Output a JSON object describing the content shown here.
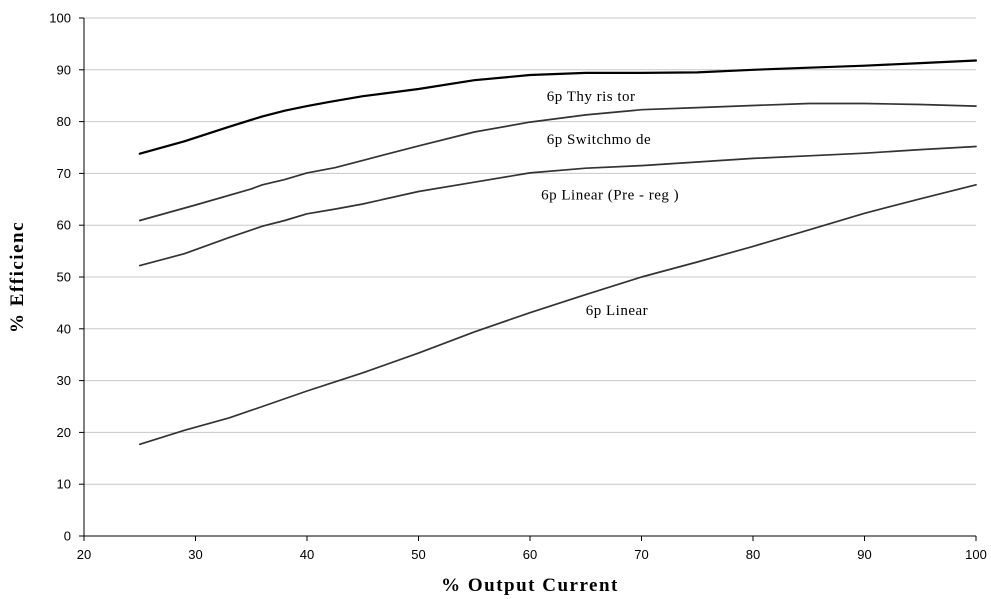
{
  "chart_data": {
    "type": "line",
    "title": "",
    "xlabel": "% Output Current",
    "ylabel": "% Efficienc",
    "xlim": [
      20,
      100
    ],
    "ylim": [
      0,
      100
    ],
    "xticks": [
      20,
      30,
      40,
      50,
      60,
      70,
      80,
      90,
      100
    ],
    "yticks": [
      0,
      10,
      20,
      30,
      40,
      50,
      60,
      70,
      80,
      90,
      100
    ],
    "grid": "horizontal",
    "series": [
      {
        "name": "6p Thyristor",
        "color": "#000000",
        "x": [
          25,
          29,
          33,
          36,
          38,
          40,
          42,
          45,
          50,
          55,
          60,
          65,
          70,
          75,
          80,
          85,
          90,
          95,
          100
        ],
        "y": [
          73.8,
          76.2,
          79.0,
          81.0,
          82.1,
          83.0,
          83.8,
          84.9,
          86.3,
          88.0,
          89.0,
          89.4,
          89.4,
          89.5,
          90.0,
          90.4,
          90.8,
          91.3,
          91.8
        ]
      },
      {
        "name": "6p Switchmode",
        "color": "#333333",
        "x": [
          25,
          30,
          35,
          36,
          38,
          40,
          42.5,
          45,
          50,
          55,
          60,
          65,
          70,
          75,
          80,
          85,
          90,
          95,
          100
        ],
        "y": [
          60.9,
          63.9,
          67.0,
          67.8,
          68.8,
          70.1,
          71.1,
          72.5,
          75.3,
          78.0,
          79.9,
          81.3,
          82.3,
          82.7,
          83.1,
          83.5,
          83.5,
          83.3,
          83.0
        ]
      },
      {
        "name": "6p Linear (Pre - reg )",
        "color": "#333333",
        "x": [
          25,
          29,
          33,
          36,
          38,
          40,
          42.5,
          45,
          50,
          55,
          60,
          65,
          70,
          75,
          80,
          85,
          90,
          95,
          100
        ],
        "y": [
          52.2,
          54.5,
          57.6,
          59.8,
          60.9,
          62.2,
          63.1,
          64.1,
          66.5,
          68.3,
          70.1,
          71.0,
          71.5,
          72.2,
          72.9,
          73.4,
          73.9,
          74.6,
          75.2
        ]
      },
      {
        "name": "6p Linear",
        "color": "#333333",
        "x": [
          25,
          29,
          33,
          36,
          40,
          45,
          50,
          55,
          60,
          65,
          70,
          75,
          80,
          85,
          90,
          95,
          100
        ],
        "y": [
          17.7,
          20.4,
          22.8,
          25.0,
          28.0,
          31.5,
          35.3,
          39.4,
          43.1,
          46.6,
          50.0,
          52.9,
          55.9,
          59.1,
          62.3,
          65.1,
          67.8
        ]
      }
    ],
    "series_labels": [
      {
        "text": "6p  Thy ris tor",
        "x": 61.5,
        "y": 84.0
      },
      {
        "text": "6p  Switchmo de",
        "x": 61.5,
        "y": 75.7
      },
      {
        "text": "6p  Linear (Pre - reg )",
        "x": 61.0,
        "y": 65.0
      },
      {
        "text": "6p  Linear",
        "x": 65.0,
        "y": 42.7
      }
    ]
  }
}
